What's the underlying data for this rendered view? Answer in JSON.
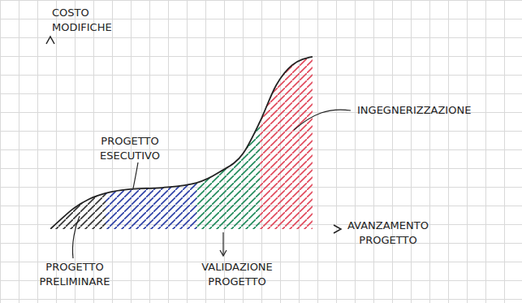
{
  "chart_data": {
    "type": "area",
    "y_label": "COSTO MODIFICHE",
    "x_label": "AVANZAMENTO PROGETTO",
    "x": [
      0,
      3.6,
      7.8,
      13.4,
      19,
      27.4,
      38.5,
      50.3,
      58.1,
      66.5,
      72.1,
      77.7,
      83.2,
      90.2
    ],
    "values": [
      0,
      5,
      10.5,
      15.6,
      18.6,
      20.7,
      21.5,
      24,
      29.5,
      39.7,
      55.7,
      74.7,
      85.2,
      89.5
    ],
    "xlim": [
      0,
      100
    ],
    "ylim": [
      0,
      100
    ],
    "tick_labels": false,
    "grid": true,
    "color": "#222222",
    "phases": [
      {
        "name": "PROGETTO PRELIMINARE",
        "color": "#333333",
        "x_start": 0,
        "x_end": 19
      },
      {
        "name": "PROGETTO ESECUTIVO",
        "color": "#2b3fa6",
        "x_start": 19,
        "x_end": 50.3
      },
      {
        "name": "VALIDAZIONE PROGETTO",
        "color": "#1f8a5a",
        "x_start": 50.3,
        "x_end": 72.1
      },
      {
        "name": "INGEGNERIZZAZIONE",
        "color": "#e0485a",
        "x_start": 72.1,
        "x_end": 90.2
      }
    ]
  }
}
